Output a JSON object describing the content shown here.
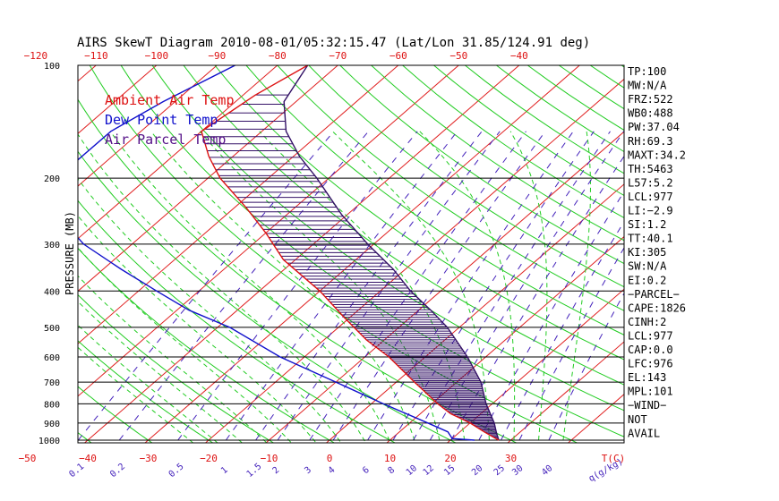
{
  "chart_data": {
    "type": "line",
    "title": "AIRS SkewT Diagram 2010-08-01/05:32:15.47 (Lat/Lon 31.85/124.91 deg)",
    "ylabel": "PRESSURE (MB)",
    "xlabel_bottom_unit": "T(C)",
    "mixing_ratio_unit": "q(g/kg)",
    "pressure_ticks": [
      {
        "label": "100",
        "p": 100
      },
      {
        "label": "200",
        "p": 200
      },
      {
        "label": "300",
        "p": 300
      },
      {
        "label": "400",
        "p": 400
      },
      {
        "label": "500",
        "p": 500
      },
      {
        "label": "600",
        "p": 600
      },
      {
        "label": "700",
        "p": 700
      },
      {
        "label": "800",
        "p": 800
      },
      {
        "label": "900",
        "p": 900
      },
      {
        "label": "1000",
        "p": 1000
      }
    ],
    "top_temp_ticks": [
      {
        "label": "−120",
        "t": -120
      },
      {
        "label": "−110",
        "t": -110
      },
      {
        "label": "−100",
        "t": -100
      },
      {
        "label": "−90",
        "t": -90
      },
      {
        "label": "−80",
        "t": -80
      },
      {
        "label": "−70",
        "t": -70
      },
      {
        "label": "−60",
        "t": -60
      },
      {
        "label": "−50",
        "t": -50
      },
      {
        "label": "−40",
        "t": -40
      }
    ],
    "bottom_temp_ticks": [
      {
        "label": "−50",
        "t": -50
      },
      {
        "label": "−40",
        "t": -40
      },
      {
        "label": "−30",
        "t": -30
      },
      {
        "label": "−20",
        "t": -20
      },
      {
        "label": "−10",
        "t": -10
      },
      {
        "label": "0",
        "t": 0
      },
      {
        "label": "10",
        "t": 10
      },
      {
        "label": "20",
        "t": 20
      },
      {
        "label": "30",
        "t": 30
      }
    ],
    "mixing_ratio_labels": [
      {
        "label": "0.1",
        "w": 0.1
      },
      {
        "label": "0.2",
        "w": 0.2
      },
      {
        "label": "0.5",
        "w": 0.5
      },
      {
        "label": "1",
        "w": 1
      },
      {
        "label": "1.5",
        "w": 1.5
      },
      {
        "label": "2",
        "w": 2
      },
      {
        "label": "3",
        "w": 3
      },
      {
        "label": "4",
        "w": 4
      },
      {
        "label": "6",
        "w": 6
      },
      {
        "label": "8",
        "w": 8
      },
      {
        "label": "10",
        "w": 10
      },
      {
        "label": "12",
        "w": 12
      },
      {
        "label": "15",
        "w": 15
      },
      {
        "label": "20",
        "w": 20
      },
      {
        "label": "25",
        "w": 25
      },
      {
        "label": "30",
        "w": 30
      },
      {
        "label": "40",
        "w": 40
      }
    ],
    "legend": [
      {
        "label": "Ambient Air Temp",
        "color": "#dd1111"
      },
      {
        "label": "Dew Point Temp",
        "color": "#1111cc"
      },
      {
        "label": "Air Parcel Temp",
        "color": "#551188"
      }
    ],
    "colors": {
      "isotherm": "#e02020",
      "dry_adiabat": "#22cc22",
      "moist_adiabat": "#22cc22",
      "mixing_ratio": "#4422bb",
      "isobar": "#000000",
      "ambient": "#dd1111",
      "dewpoint": "#1111cc",
      "parcel": "#331166",
      "hatch": "#331166"
    },
    "series": [
      {
        "name": "Ambient Air Temp",
        "points": [
          {
            "p": 100,
            "t": -75
          },
          {
            "p": 120,
            "t": -78
          },
          {
            "p": 150,
            "t": -80
          },
          {
            "p": 175,
            "t": -74
          },
          {
            "p": 200,
            "t": -68
          },
          {
            "p": 240,
            "t": -58
          },
          {
            "p": 280,
            "t": -50
          },
          {
            "p": 330,
            "t": -42
          },
          {
            "p": 400,
            "t": -30
          },
          {
            "p": 470,
            "t": -21
          },
          {
            "p": 540,
            "t": -13
          },
          {
            "p": 600,
            "t": -6
          },
          {
            "p": 700,
            "t": 3
          },
          {
            "p": 800,
            "t": 11
          },
          {
            "p": 850,
            "t": 15
          },
          {
            "p": 900,
            "t": 20
          },
          {
            "p": 950,
            "t": 24
          },
          {
            "p": 1000,
            "t": 28
          }
        ]
      },
      {
        "name": "Dew Point Temp",
        "points": [
          {
            "p": 100,
            "t": -87
          },
          {
            "p": 125,
            "t": -92
          },
          {
            "p": 150,
            "t": -95
          },
          {
            "p": 200,
            "t": -95
          },
          {
            "p": 250,
            "t": -88
          },
          {
            "p": 300,
            "t": -78
          },
          {
            "p": 350,
            "t": -67
          },
          {
            "p": 400,
            "t": -57
          },
          {
            "p": 450,
            "t": -48
          },
          {
            "p": 500,
            "t": -38
          },
          {
            "p": 600,
            "t": -24
          },
          {
            "p": 700,
            "t": -10
          },
          {
            "p": 800,
            "t": 2
          },
          {
            "p": 900,
            "t": 13
          },
          {
            "p": 950,
            "t": 18
          },
          {
            "p": 990,
            "t": 20
          },
          {
            "p": 1000,
            "t": 24
          }
        ]
      },
      {
        "name": "Air Parcel Temp",
        "points": [
          {
            "p": 100,
            "t": -75
          },
          {
            "p": 125,
            "t": -72
          },
          {
            "p": 150,
            "t": -66
          },
          {
            "p": 175,
            "t": -59
          },
          {
            "p": 200,
            "t": -52
          },
          {
            "p": 250,
            "t": -41
          },
          {
            "p": 300,
            "t": -31
          },
          {
            "p": 350,
            "t": -22
          },
          {
            "p": 400,
            "t": -15
          },
          {
            "p": 450,
            "t": -8
          },
          {
            "p": 500,
            "t": -2
          },
          {
            "p": 600,
            "t": 7
          },
          {
            "p": 700,
            "t": 14
          },
          {
            "p": 800,
            "t": 19
          },
          {
            "p": 900,
            "t": 24
          },
          {
            "p": 950,
            "t": 26
          },
          {
            "p": 1000,
            "t": 28
          }
        ]
      }
    ],
    "wind_note": "NOT AVAIL",
    "stats": [
      "TP:100",
      "MW:N/A",
      "FRZ:522",
      "WB0:488",
      "PW:37.04",
      "RH:69.3",
      "MAXT:34.2",
      "TH:5463",
      "L57:5.2",
      "LCL:977",
      "LI:−2.9",
      "SI:1.2",
      "TT:40.1",
      "KI:305",
      "SW:N/A",
      "EI:0.2",
      "−PARCEL−",
      "CAPE:1826",
      "CINH:2",
      "LCL:977",
      "CAP:0.0",
      "LFC:976",
      "EL:143",
      "MPL:101",
      "−WIND−",
      "NOT",
      "AVAIL"
    ]
  }
}
